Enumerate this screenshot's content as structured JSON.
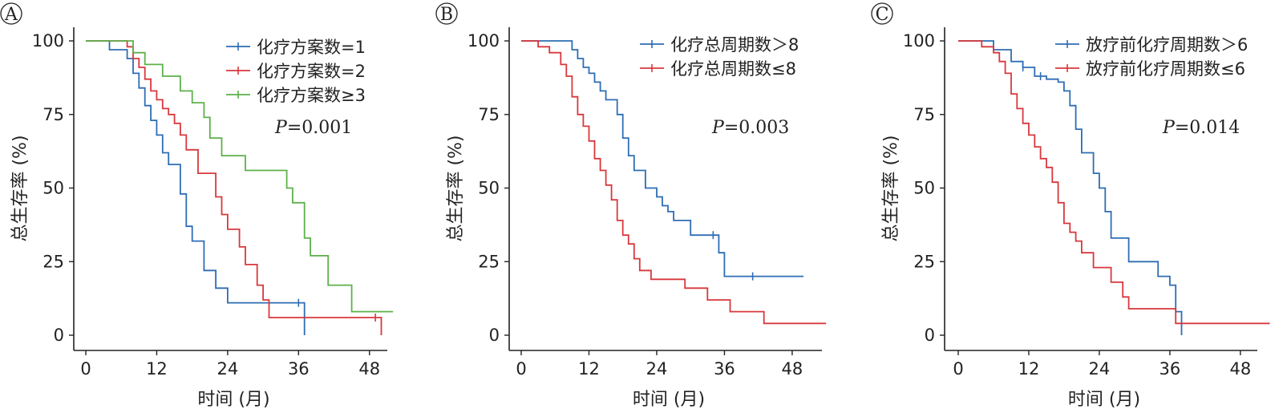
{
  "chart_data": [
    {
      "type": "line",
      "step": true,
      "panel_label": "A",
      "xlabel": "时间 (月)",
      "ylabel": "总生存率 (%)",
      "xlim": [
        0,
        52
      ],
      "ylim": [
        0,
        100
      ],
      "xticks": [
        "0",
        "12",
        "24",
        "36",
        "48"
      ],
      "yticks": [
        "0",
        "25",
        "50",
        "75",
        "100"
      ],
      "legend_position": "top-right",
      "p_prefix": "P",
      "p_value": "=0.001",
      "series": [
        {
          "name": "化疗方案数=1",
          "color": "#2E6DB4",
          "x": [
            0,
            4,
            7,
            8,
            9,
            10,
            11,
            12,
            13,
            14,
            16,
            17,
            18,
            20,
            22,
            24,
            34,
            36,
            37
          ],
          "y": [
            100,
            97,
            94,
            89,
            84,
            78,
            73,
            68,
            62,
            58,
            48,
            37,
            32,
            22,
            16,
            11,
            11,
            11,
            0
          ],
          "censor_x": [
            36
          ]
        },
        {
          "name": "化疗方案数=2",
          "color": "#D8383C",
          "x": [
            0,
            7,
            8,
            9,
            10,
            11,
            12,
            13,
            14,
            15,
            16,
            17,
            19,
            22,
            23,
            24,
            26,
            27,
            29,
            30,
            31,
            49,
            50
          ],
          "y": [
            100,
            98,
            94,
            91,
            87,
            83,
            80,
            77,
            75,
            72,
            68,
            63,
            55,
            47,
            41,
            36,
            30,
            24,
            17,
            12,
            6,
            6,
            0
          ],
          "censor_x": [
            49
          ]
        },
        {
          "name": "化疗方案数≥3",
          "color": "#5DB04B",
          "x": [
            0,
            8,
            10,
            13,
            16,
            18,
            20,
            21,
            23,
            27,
            34,
            35,
            37,
            38,
            41,
            45,
            52
          ],
          "y": [
            100,
            96,
            92,
            88,
            83,
            79,
            74,
            67,
            61,
            56,
            50,
            45,
            33,
            27,
            17,
            8,
            8
          ],
          "censor_x": []
        }
      ]
    },
    {
      "type": "line",
      "step": true,
      "panel_label": "B",
      "xlabel": "时间 (月)",
      "ylabel": "总生存率 (%)",
      "xlim": [
        0,
        52
      ],
      "ylim": [
        0,
        100
      ],
      "xticks": [
        "0",
        "12",
        "24",
        "36",
        "48"
      ],
      "yticks": [
        "0",
        "25",
        "50",
        "75",
        "100"
      ],
      "legend_position": "top-right",
      "p_prefix": "P",
      "p_value": "=0.003",
      "series": [
        {
          "name": "化疗总周期数＞8",
          "color": "#2E6DB4",
          "x": [
            0,
            9,
            10,
            11,
            12,
            13,
            14,
            15,
            17,
            18,
            19,
            20,
            22,
            24,
            25,
            26,
            27,
            30,
            35,
            36,
            50
          ],
          "y": [
            100,
            97,
            94,
            91,
            89,
            86,
            83,
            80,
            75,
            67,
            61,
            56,
            50,
            47,
            44,
            42,
            39,
            34,
            28,
            20,
            20
          ],
          "censor_x": [
            34,
            41
          ]
        },
        {
          "name": "化疗总周期数≤8",
          "color": "#D8383C",
          "x": [
            0,
            3,
            5,
            7,
            8,
            9,
            10,
            11,
            12,
            13,
            14,
            15,
            16,
            17,
            18,
            19,
            20,
            21,
            23,
            29,
            33,
            37,
            43,
            54
          ],
          "y": [
            100,
            98,
            96,
            92,
            88,
            81,
            75,
            71,
            66,
            60,
            56,
            51,
            46,
            39,
            34,
            31,
            26,
            22,
            19,
            16,
            12,
            8,
            4,
            4
          ],
          "censor_x": []
        }
      ]
    },
    {
      "type": "line",
      "step": true,
      "panel_label": "C",
      "xlabel": "时间 (月)",
      "ylabel": "总生存率 (%)",
      "xlim": [
        0,
        52
      ],
      "ylim": [
        0,
        100
      ],
      "xticks": [
        "0",
        "12",
        "24",
        "36",
        "48"
      ],
      "yticks": [
        "0",
        "25",
        "50",
        "75",
        "100"
      ],
      "legend_position": "top-right",
      "p_prefix": "P",
      "p_value": "=0.014",
      "series": [
        {
          "name": "放疗前化疗周期数＞6",
          "color": "#2E6DB4",
          "x": [
            0,
            6,
            9,
            11,
            13,
            15,
            17,
            18,
            19,
            20,
            21,
            23,
            24,
            25,
            26,
            29,
            34,
            36,
            37,
            38
          ],
          "y": [
            100,
            97,
            93,
            91,
            88,
            87,
            86,
            83,
            78,
            70,
            62,
            55,
            50,
            42,
            33,
            25,
            20,
            17,
            8,
            0
          ],
          "censor_x": [
            11,
            14
          ]
        },
        {
          "name": "放疗前化疗周期数≤6",
          "color": "#D8383C",
          "x": [
            0,
            4,
            6,
            7,
            8,
            9,
            10,
            11,
            12,
            13,
            14,
            15,
            16,
            17,
            18,
            19,
            20,
            21,
            23,
            26,
            28,
            29,
            33,
            37,
            53
          ],
          "y": [
            100,
            98,
            96,
            93,
            89,
            82,
            77,
            72,
            68,
            64,
            60,
            57,
            52,
            45,
            38,
            35,
            32,
            28,
            23,
            18,
            13,
            9,
            9,
            4,
            4
          ],
          "censor_x": []
        }
      ]
    }
  ]
}
